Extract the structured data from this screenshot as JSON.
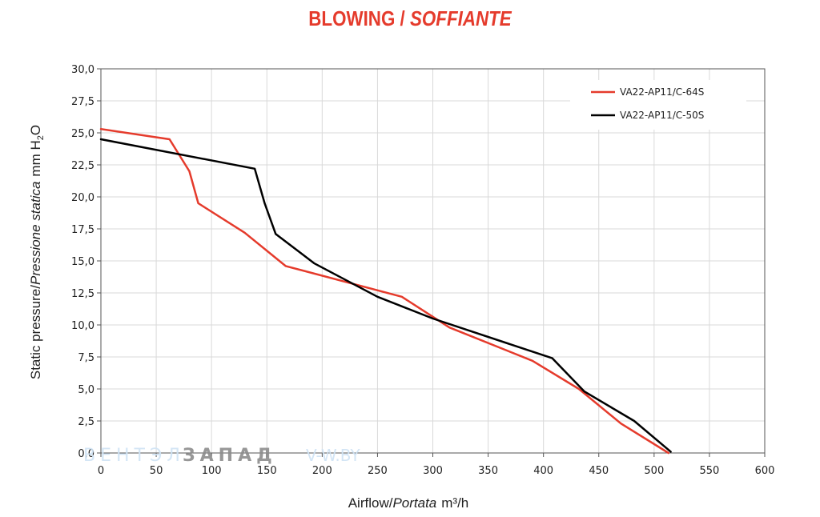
{
  "title": {
    "main": "BLOWING",
    "separator": " / ",
    "italic": "SOFFIANTE"
  },
  "watermark": {
    "left": "ВЕНТЭЛ",
    "right": "ЗАПАД",
    "site": "V-W.BY"
  },
  "colors": {
    "title": "#e53b2c",
    "series_red": "#e53b2c",
    "series_black": "#000000",
    "grid": "#d9d9d9",
    "watermark_blue": "#cfe3f5",
    "watermark_gray": "#8c8c8c"
  },
  "chart_data": {
    "type": "line",
    "xlabel": {
      "regular": "Airflow/",
      "italic": "Portata",
      "unit": "m³/h"
    },
    "ylabel": {
      "regular": "Static pressure/",
      "italic": "Pressione statica",
      "unit_main": "mm H",
      "unit_sub": "2",
      "unit_tail": "O"
    },
    "xlim": [
      0,
      600
    ],
    "ylim": [
      0,
      30
    ],
    "x_ticks": [
      "0",
      "50",
      "100",
      "150",
      "200",
      "250",
      "300",
      "350",
      "400",
      "450",
      "500",
      "550",
      "600"
    ],
    "y_ticks": [
      "0,0",
      "2,5",
      "5,0",
      "7,5",
      "10,0",
      "12,5",
      "15,0",
      "17,5",
      "20,0",
      "22,5",
      "25,0",
      "27,5",
      "30,0"
    ],
    "grid": true,
    "legend_position": "top-right",
    "series": [
      {
        "name": "VA22-AP11/C-64S",
        "color": "#e53b2c",
        "points": [
          [
            0,
            25.3
          ],
          [
            62,
            24.5
          ],
          [
            80,
            22.0
          ],
          [
            88,
            19.5
          ],
          [
            130,
            17.2
          ],
          [
            167,
            14.6
          ],
          [
            272,
            12.2
          ],
          [
            315,
            9.8
          ],
          [
            390,
            7.2
          ],
          [
            432,
            5.0
          ],
          [
            470,
            2.3
          ],
          [
            513,
            0.0
          ]
        ]
      },
      {
        "name": "VA22-AP11/C-50S",
        "color": "#000000",
        "points": [
          [
            0,
            24.5
          ],
          [
            139,
            22.2
          ],
          [
            148,
            19.5
          ],
          [
            158,
            17.1
          ],
          [
            193,
            14.8
          ],
          [
            250,
            12.2
          ],
          [
            300,
            10.5
          ],
          [
            408,
            7.4
          ],
          [
            437,
            4.8
          ],
          [
            482,
            2.5
          ],
          [
            515,
            0.1
          ]
        ]
      }
    ]
  }
}
